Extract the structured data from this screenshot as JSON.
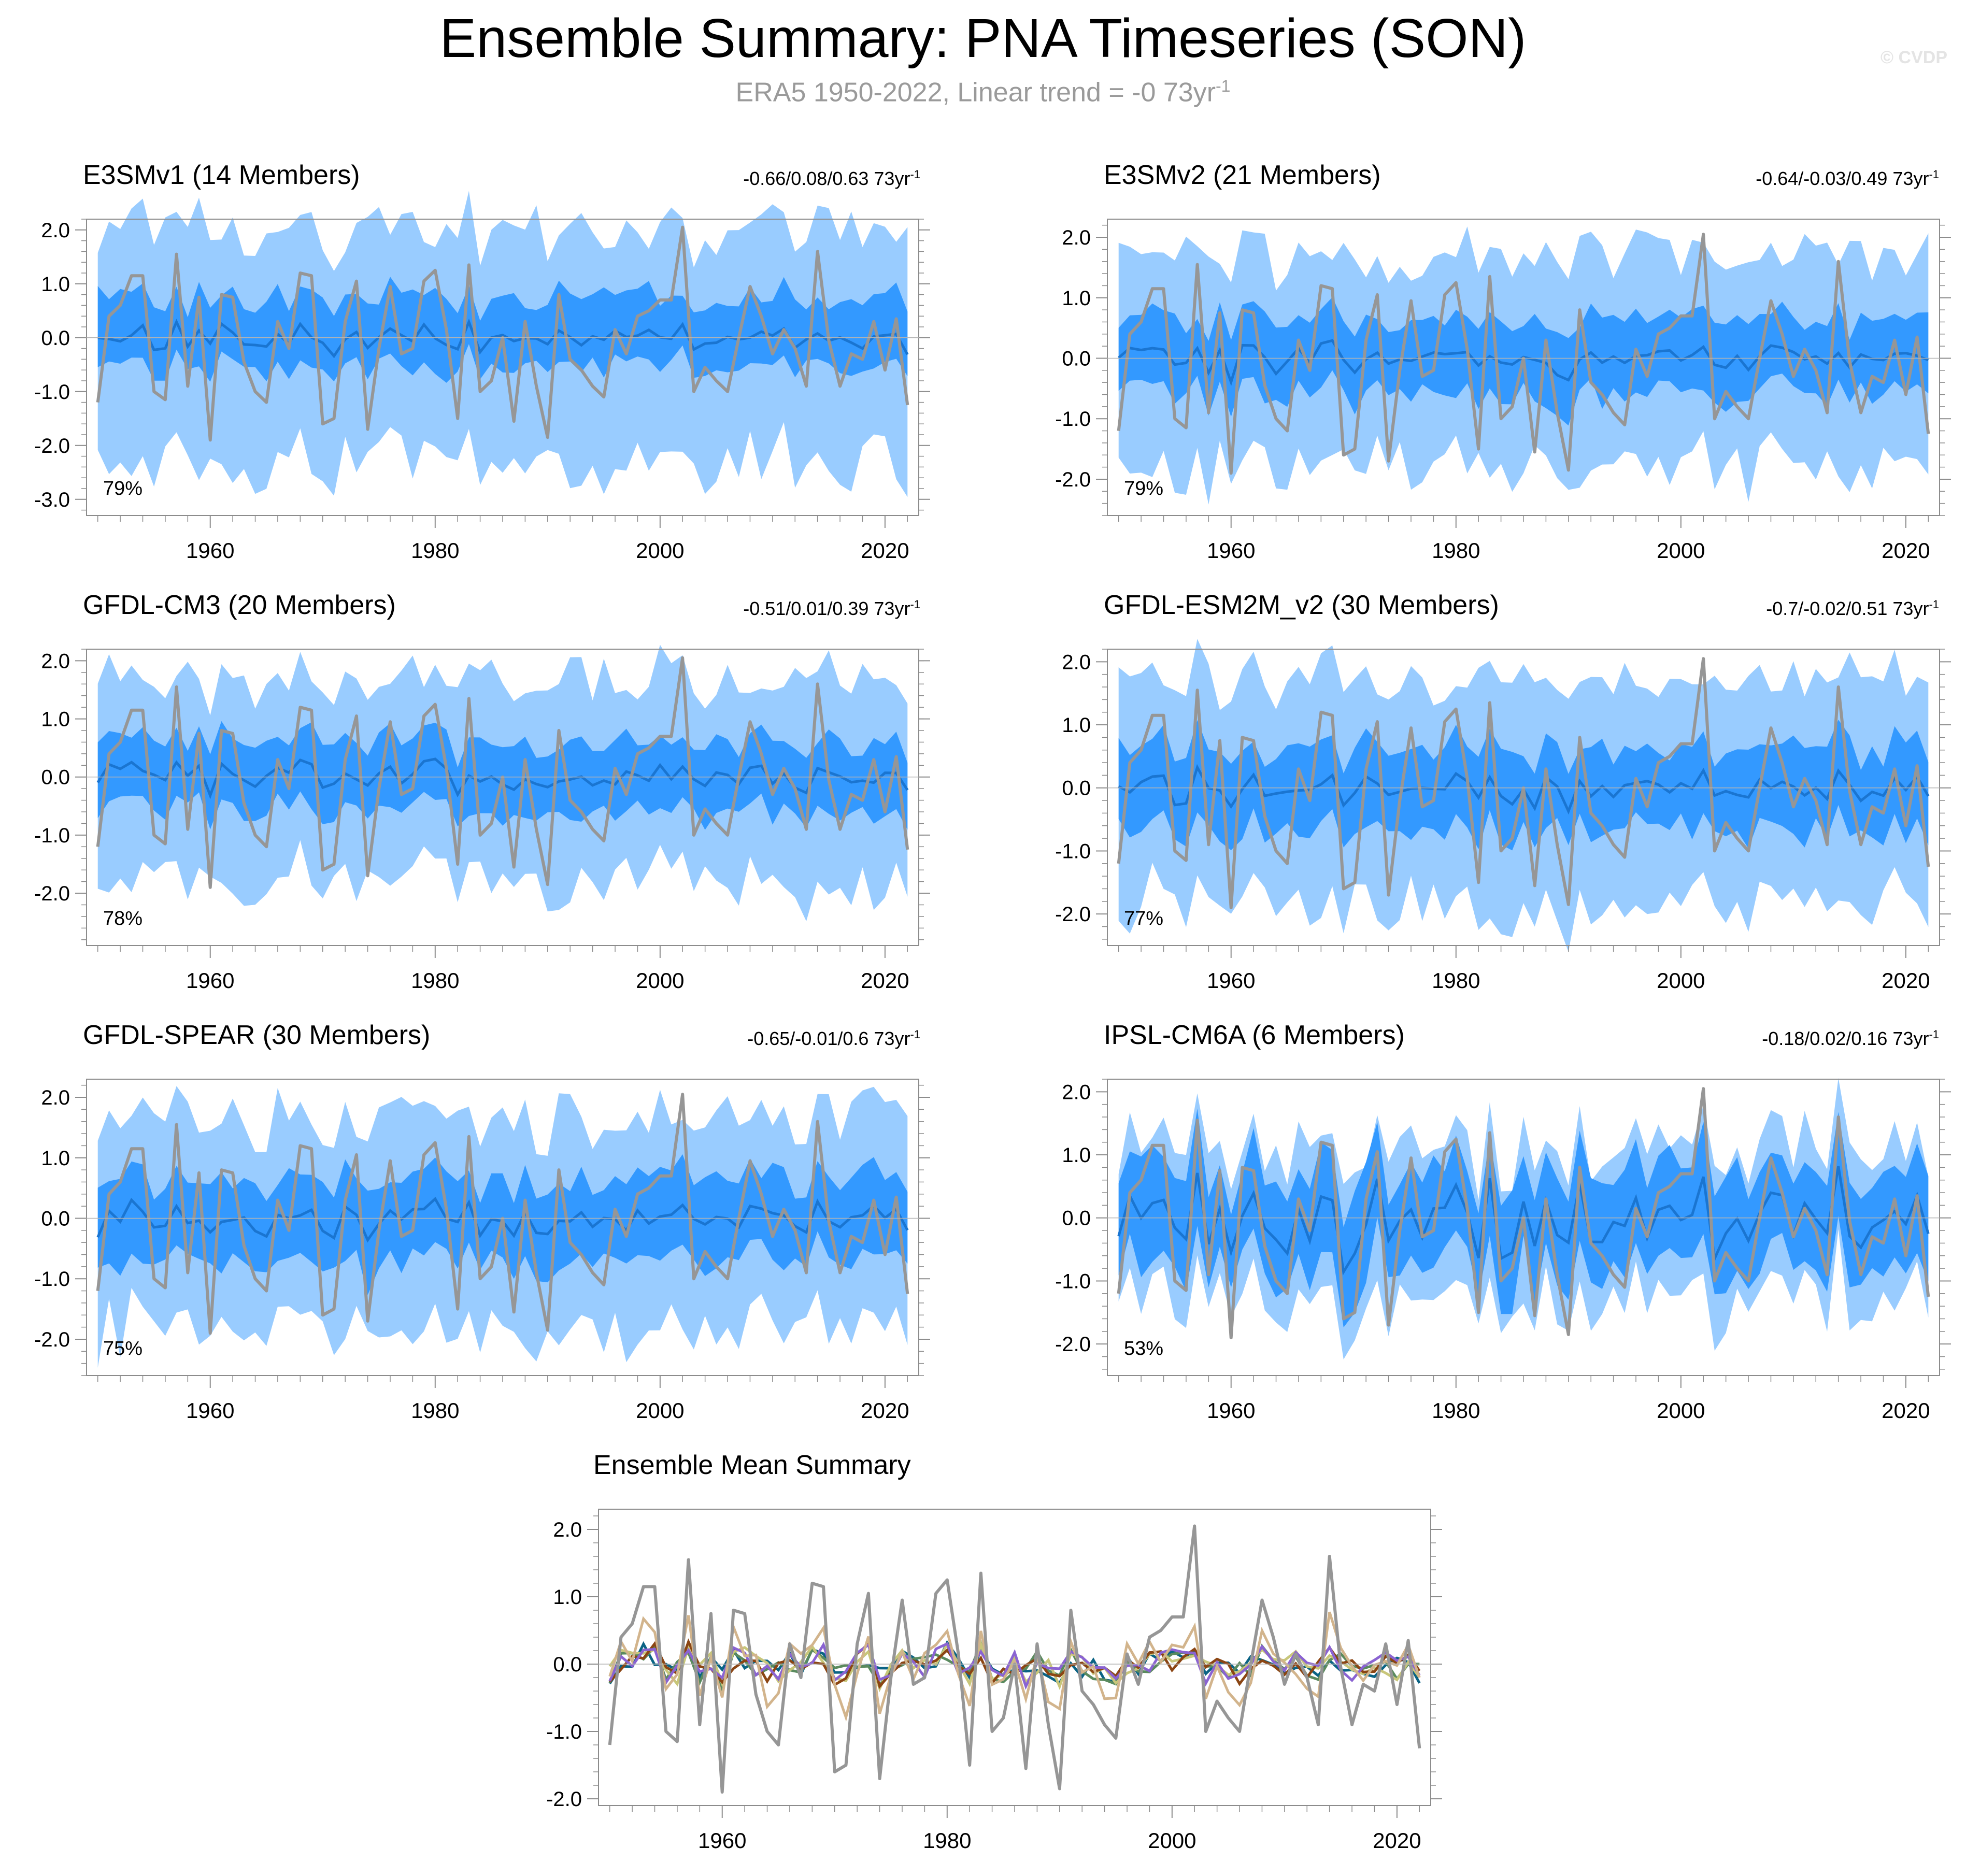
{
  "title": "Ensemble Summary: PNA Timeseries (SON)",
  "subtitle": {
    "text": "ERA5 1950-2022, Linear trend = -0 73yr",
    "sup": "-1"
  },
  "watermark": "© CVDP",
  "colors": {
    "outer_band": "#99ccff",
    "inner_band": "#3399ff",
    "ens_mean": "#1a75d1",
    "obs": "#969696"
  },
  "chart_data": [
    {
      "type": "line",
      "model": "E3SMv1",
      "title": "E3SMv1 (14 Members)",
      "title_color": "#0a6384",
      "trend": "-0.66/0.08/0.63 73yr",
      "trend_sup": "-1",
      "percent": "79%",
      "seed": 11,
      "ylim": [
        -3.3,
        2.2
      ],
      "yticks": [
        "2.0",
        "1.0",
        "0.0",
        "-1.0",
        "-2.0",
        "-3.0"
      ],
      "ytick_values": [
        2,
        1,
        0,
        -1,
        -2,
        -3
      ],
      "xlim": [
        1949,
        2023
      ],
      "xticks": [
        "1960",
        "1980",
        "2000",
        "2020"
      ],
      "xtick_values": [
        1960,
        1980,
        2000,
        2020
      ],
      "band_outer": [
        2.0,
        2.3
      ],
      "band_inner": [
        0.75,
        0.55
      ],
      "series": [
        {
          "name": "ERA5"
        },
        {
          "name": "Ensemble Mean"
        }
      ]
    },
    {
      "type": "line",
      "model": "E3SMv2",
      "title": "E3SMv2 (21 Members)",
      "title_color": "#5a8a5e",
      "trend": "-0.64/-0.03/0.49 73yr",
      "trend_sup": "-1",
      "percent": "79%",
      "seed": 23,
      "ylim": [
        -2.6,
        2.3
      ],
      "yticks": [
        "2.0",
        "1.0",
        "0.0",
        "-1.0",
        "-2.0"
      ],
      "ytick_values": [
        2,
        1,
        0,
        -1,
        -2
      ],
      "xlim": [
        1949,
        2023
      ],
      "xticks": [
        "1960",
        "1980",
        "2000",
        "2020"
      ],
      "xtick_values": [
        1960,
        1980,
        2000,
        2020
      ],
      "band_outer": [
        1.7,
        1.8
      ],
      "band_inner": [
        0.65,
        0.6
      ],
      "series": [
        {
          "name": "ERA5"
        },
        {
          "name": "Ensemble Mean"
        }
      ]
    },
    {
      "type": "line",
      "model": "GFDL-CM3",
      "title": "GFDL-CM3 (20 Members)",
      "title_color": "#c8c67a",
      "trend": "-0.51/0.01/0.39 73yr",
      "trend_sup": "-1",
      "percent": "78%",
      "seed": 37,
      "ylim": [
        -2.9,
        2.2
      ],
      "yticks": [
        "2.0",
        "1.0",
        "0.0",
        "-1.0",
        "-2.0"
      ],
      "ytick_values": [
        2,
        1,
        0,
        -1,
        -2
      ],
      "xlim": [
        1949,
        2023
      ],
      "xticks": [
        "1960",
        "1980",
        "2000",
        "2020"
      ],
      "xtick_values": [
        1960,
        1980,
        2000,
        2020
      ],
      "band_outer": [
        1.7,
        1.8
      ],
      "band_inner": [
        0.6,
        0.6
      ],
      "series": [
        {
          "name": "ERA5"
        },
        {
          "name": "Ensemble Mean"
        }
      ]
    },
    {
      "type": "line",
      "model": "GFDL-ESM2M_v2",
      "title": "GFDL-ESM2M_v2 (30 Members)",
      "title_color": "#8b4513",
      "trend": "-0.7/-0.02/0.51 73yr",
      "trend_sup": "-1",
      "percent": "77%",
      "seed": 41,
      "ylim": [
        -2.5,
        2.2
      ],
      "yticks": [
        "2.0",
        "1.0",
        "0.0",
        "-1.0",
        "-2.0"
      ],
      "ytick_values": [
        2,
        1,
        0,
        -1,
        -2
      ],
      "xlim": [
        1949,
        2023
      ],
      "xticks": [
        "1960",
        "1980",
        "2000",
        "2020"
      ],
      "xtick_values": [
        1960,
        1980,
        2000,
        2020
      ],
      "band_outer": [
        1.7,
        1.8
      ],
      "band_inner": [
        0.65,
        0.65
      ],
      "series": [
        {
          "name": "ERA5"
        },
        {
          "name": "Ensemble Mean"
        }
      ]
    },
    {
      "type": "line",
      "model": "GFDL-SPEAR",
      "title": "GFDL-SPEAR (30 Members)",
      "title_color": "#8a63d2",
      "trend": "-0.65/-0.01/0.6 73yr",
      "trend_sup": "-1",
      "percent": "75%",
      "seed": 53,
      "ylim": [
        -2.6,
        2.3
      ],
      "yticks": [
        "2.0",
        "1.0",
        "0.0",
        "-1.0",
        "-2.0"
      ],
      "ytick_values": [
        2,
        1,
        0,
        -1,
        -2
      ],
      "xlim": [
        1949,
        2023
      ],
      "xticks": [
        "1960",
        "1980",
        "2000",
        "2020"
      ],
      "xtick_values": [
        1960,
        1980,
        2000,
        2020
      ],
      "band_outer": [
        1.7,
        1.8
      ],
      "band_inner": [
        0.65,
        0.7
      ],
      "series": [
        {
          "name": "ERA5"
        },
        {
          "name": "Ensemble Mean"
        }
      ]
    },
    {
      "type": "line",
      "model": "IPSL-CM6A",
      "title": "IPSL-CM6A (6 Members)",
      "title_color": "#d2b48c",
      "trend": "-0.18/0.02/0.16 73yr",
      "trend_sup": "-1",
      "percent": "53%",
      "seed": 67,
      "ylim": [
        -2.5,
        2.2
      ],
      "yticks": [
        "2.0",
        "1.0",
        "0.0",
        "-1.0",
        "-2.0"
      ],
      "ytick_values": [
        2,
        1,
        0,
        -1,
        -2
      ],
      "xlim": [
        1949,
        2023
      ],
      "xticks": [
        "1960",
        "1980",
        "2000",
        "2020"
      ],
      "xtick_values": [
        1960,
        1980,
        2000,
        2020
      ],
      "band_outer": [
        1.2,
        1.3
      ],
      "band_inner": [
        0.8,
        0.75
      ],
      "series": [
        {
          "name": "ERA5"
        },
        {
          "name": "Ensemble Mean"
        }
      ]
    },
    {
      "type": "line",
      "model": "summary",
      "title": "Ensemble Mean Summary",
      "ylim": [
        -2.1,
        2.3
      ],
      "yticks": [
        "2.0",
        "1.0",
        "0.0",
        "-1.0",
        "-2.0"
      ],
      "ytick_values": [
        2,
        1,
        0,
        -1,
        -2
      ],
      "xlim": [
        1949,
        2023
      ],
      "xticks": [
        "1960",
        "1980",
        "2000",
        "2020"
      ],
      "xtick_values": [
        1960,
        1980,
        2000,
        2020
      ],
      "series": [
        {
          "name": "E3SMv1",
          "color": "#0a6384"
        },
        {
          "name": "E3SMv2",
          "color": "#5a8a5e"
        },
        {
          "name": "GFDL-CM3",
          "color": "#c8c67a"
        },
        {
          "name": "GFDL-ESM2M_v2",
          "color": "#8b4513"
        },
        {
          "name": "GFDL-SPEAR",
          "color": "#8a63d2"
        },
        {
          "name": "IPSL-CM6A",
          "color": "#d2b48c"
        },
        {
          "name": "ERA5",
          "color": "#969696"
        }
      ]
    }
  ],
  "obs_era5": {
    "years": [
      1950,
      1951,
      1952,
      1953,
      1954,
      1955,
      1956,
      1957,
      1958,
      1959,
      1960,
      1961,
      1962,
      1963,
      1964,
      1965,
      1966,
      1967,
      1968,
      1969,
      1970,
      1971,
      1972,
      1973,
      1974,
      1975,
      1976,
      1977,
      1978,
      1979,
      1980,
      1981,
      1982,
      1983,
      1984,
      1985,
      1986,
      1987,
      1988,
      1989,
      1990,
      1991,
      1992,
      1993,
      1994,
      1995,
      1996,
      1997,
      1998,
      1999,
      2000,
      2001,
      2002,
      2003,
      2004,
      2005,
      2006,
      2007,
      2008,
      2009,
      2010,
      2011,
      2012,
      2013,
      2014,
      2015,
      2016,
      2017,
      2018,
      2019,
      2020,
      2021,
      2022
    ],
    "values": [
      -1.2,
      0.4,
      0.6,
      1.15,
      1.15,
      -1.0,
      -1.15,
      1.55,
      -0.9,
      0.75,
      -1.9,
      0.8,
      0.75,
      -0.45,
      -1.0,
      -1.2,
      0.3,
      -0.2,
      1.2,
      1.15,
      -1.6,
      -1.5,
      0.3,
      1.05,
      -1.7,
      -0.2,
      0.95,
      -0.3,
      -0.2,
      1.05,
      1.25,
      0.15,
      -1.5,
      1.35,
      -1.0,
      -0.8,
      0.0,
      -1.55,
      0.3,
      -0.9,
      -1.85,
      0.8,
      -0.4,
      -0.6,
      -0.9,
      -1.1,
      0.15,
      -0.3,
      0.4,
      0.5,
      0.7,
      0.7,
      2.05,
      -1.0,
      -0.55,
      -0.8,
      -1.0,
      0.0,
      0.95,
      0.4,
      -0.3,
      0.15,
      -0.2,
      -0.9,
      1.6,
      -0.05,
      -0.9,
      -0.3,
      -0.4,
      0.3,
      -0.6,
      0.35,
      -1.25
    ]
  }
}
